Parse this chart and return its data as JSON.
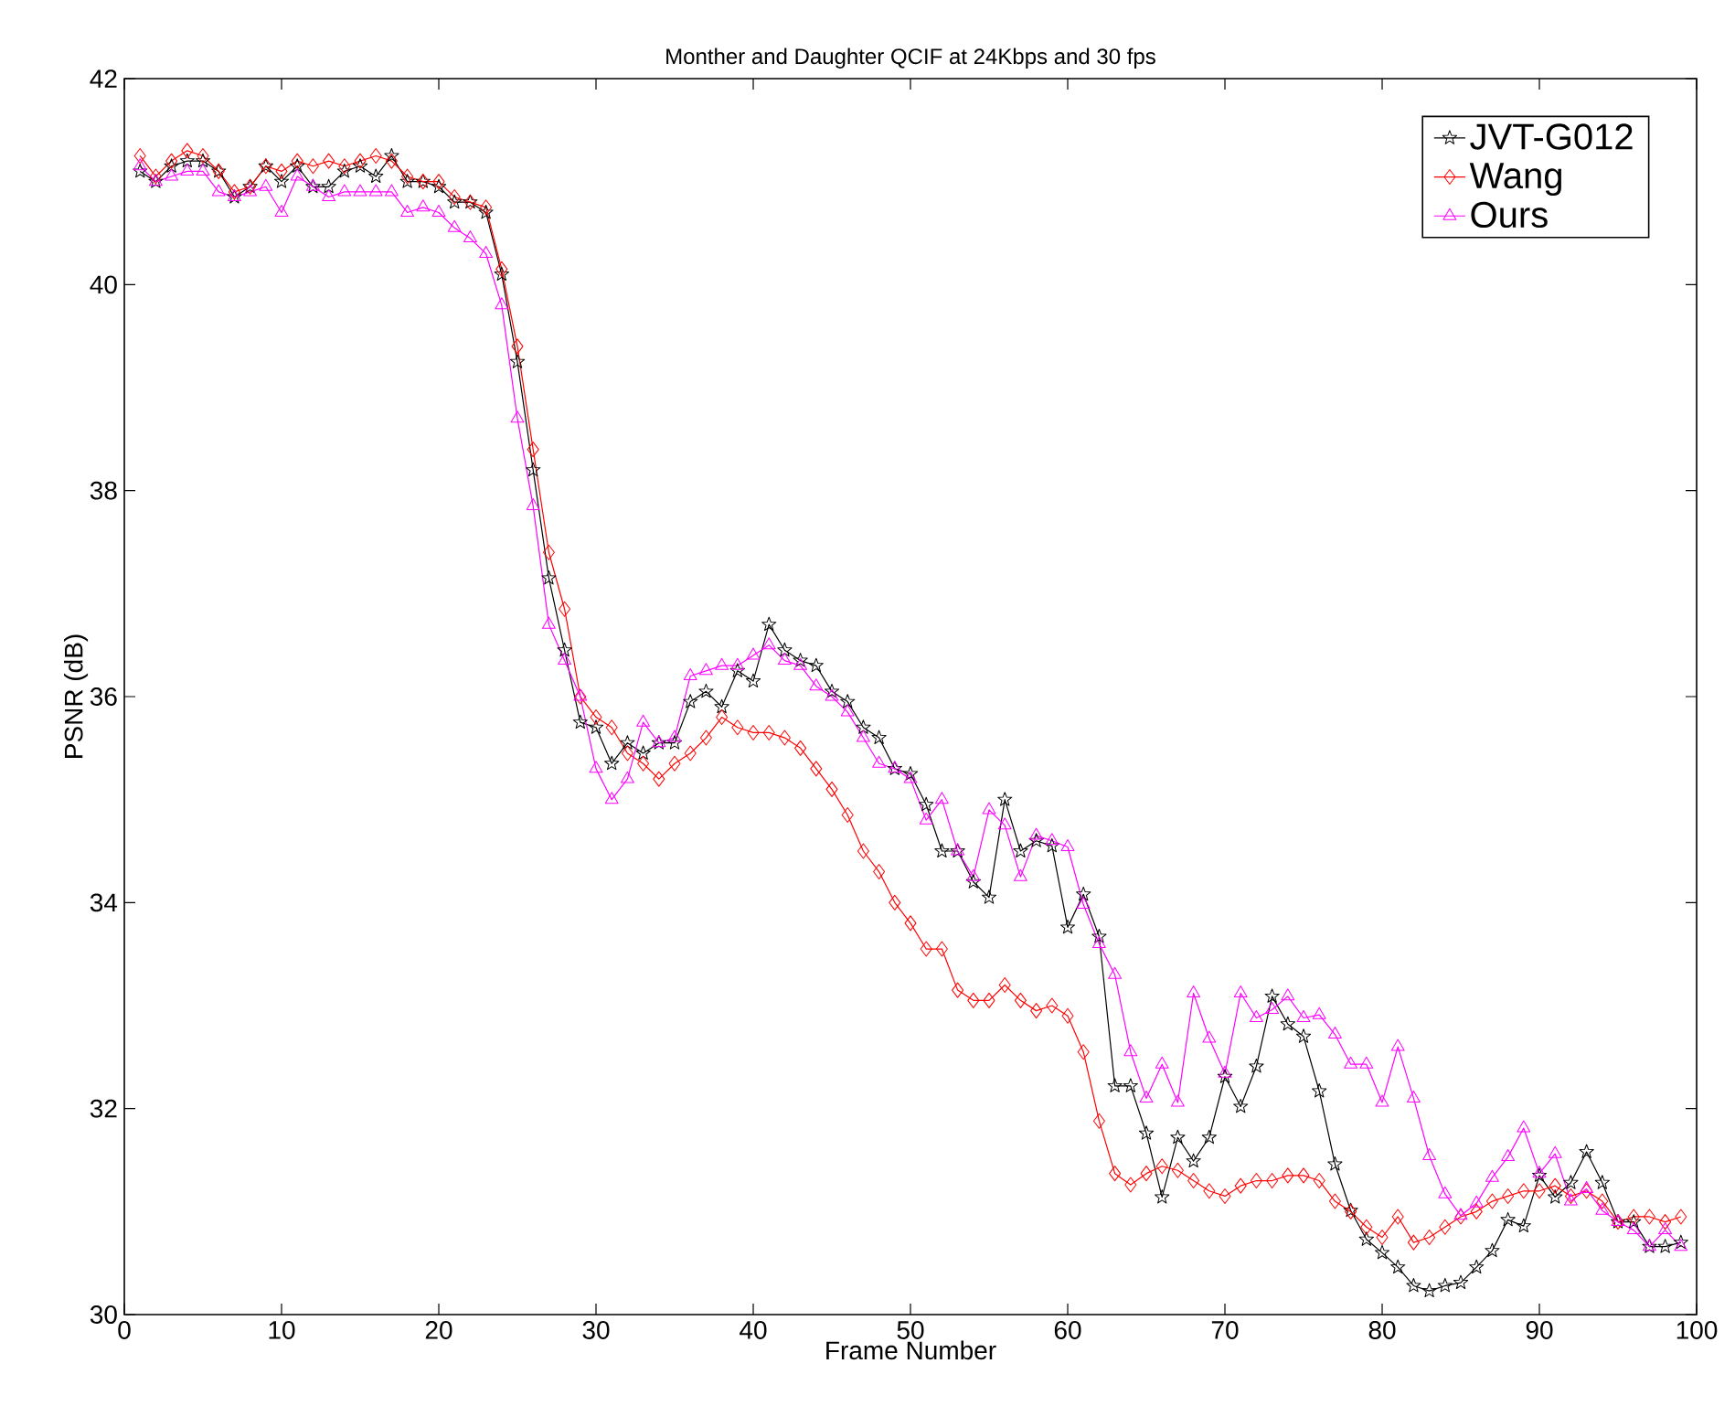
{
  "chart_data": {
    "type": "line",
    "title": "Monther and Daughter QCIF at 24Kbps and 30 fps",
    "xlabel": "Frame Number",
    "ylabel": "PSNR (dB)",
    "xlim": [
      0,
      100
    ],
    "ylim": [
      30,
      42
    ],
    "xticks": [
      0,
      10,
      20,
      30,
      40,
      50,
      60,
      70,
      80,
      90,
      100
    ],
    "yticks": [
      30,
      32,
      34,
      36,
      38,
      40,
      42
    ],
    "grid": false,
    "legend": "top right",
    "line_style": "solid",
    "x": [
      1,
      2,
      3,
      4,
      5,
      6,
      7,
      8,
      9,
      10,
      11,
      12,
      13,
      14,
      15,
      16,
      17,
      18,
      19,
      20,
      21,
      22,
      23,
      24,
      25,
      26,
      27,
      28,
      29,
      30,
      31,
      32,
      33,
      34,
      35,
      36,
      37,
      38,
      39,
      40,
      41,
      42,
      43,
      44,
      45,
      46,
      47,
      48,
      49,
      50,
      51,
      52,
      53,
      54,
      55,
      56,
      57,
      58,
      59,
      60,
      61,
      62,
      63,
      64,
      65,
      66,
      67,
      68,
      69,
      70,
      71,
      72,
      73,
      74,
      75,
      76,
      77,
      78,
      79,
      80,
      81,
      82,
      83,
      84,
      85,
      86,
      87,
      88,
      89,
      90,
      91,
      92,
      93,
      94,
      95,
      96,
      97,
      98,
      99
    ],
    "series": [
      {
        "name": "JVT-G012",
        "color": "#000000",
        "marker": "star",
        "values": [
          41.1,
          41.0,
          41.15,
          41.2,
          41.2,
          41.1,
          40.85,
          40.95,
          41.15,
          41.0,
          41.15,
          40.95,
          40.95,
          41.1,
          41.15,
          41.05,
          41.25,
          41.0,
          41.0,
          40.95,
          40.8,
          40.8,
          40.7,
          40.1,
          39.25,
          38.2,
          37.15,
          36.45,
          35.75,
          35.7,
          35.35,
          35.55,
          35.45,
          35.55,
          35.55,
          35.95,
          36.05,
          35.9,
          36.25,
          36.15,
          36.7,
          36.45,
          36.35,
          36.3,
          36.05,
          35.95,
          35.7,
          35.6,
          35.3,
          35.25,
          34.95,
          34.5,
          34.5,
          34.2,
          34.05,
          35.0,
          34.5,
          34.6,
          34.55,
          33.76,
          34.08,
          33.67,
          32.22,
          32.22,
          31.76,
          31.14,
          31.72,
          31.49,
          31.72,
          32.31,
          32.02,
          32.41,
          33.09,
          32.82,
          32.7,
          32.17,
          31.46,
          31.01,
          30.73,
          30.6,
          30.46,
          30.28,
          30.23,
          30.28,
          30.31,
          30.46,
          30.62,
          30.92,
          30.86,
          31.35,
          31.14,
          31.28,
          31.58,
          31.28,
          30.9,
          30.9,
          30.66,
          30.66,
          30.7
        ]
      },
      {
        "name": "Wang",
        "color": "#ff0000",
        "marker": "diamond",
        "values": [
          41.25,
          41.05,
          41.2,
          41.3,
          41.25,
          41.1,
          40.9,
          40.95,
          41.15,
          41.1,
          41.2,
          41.15,
          41.2,
          41.15,
          41.2,
          41.25,
          41.2,
          41.05,
          41.0,
          41.0,
          40.85,
          40.8,
          40.75,
          40.15,
          39.4,
          38.4,
          37.4,
          36.85,
          36.0,
          35.8,
          35.7,
          35.45,
          35.35,
          35.2,
          35.35,
          35.45,
          35.6,
          35.8,
          35.7,
          35.65,
          35.65,
          35.6,
          35.5,
          35.3,
          35.1,
          34.85,
          34.5,
          34.3,
          34.0,
          33.8,
          33.55,
          33.55,
          33.15,
          33.05,
          33.05,
          33.2,
          33.05,
          32.95,
          33.0,
          32.9,
          32.55,
          31.88,
          31.37,
          31.26,
          31.37,
          31.44,
          31.4,
          31.3,
          31.2,
          31.15,
          31.25,
          31.3,
          31.3,
          31.35,
          31.35,
          31.3,
          31.1,
          31.0,
          30.85,
          30.75,
          30.95,
          30.7,
          30.75,
          30.85,
          30.95,
          31.0,
          31.1,
          31.15,
          31.2,
          31.2,
          31.25,
          31.15,
          31.2,
          31.1,
          30.9,
          30.95,
          30.95,
          30.9,
          30.95
        ]
      },
      {
        "name": "Ours",
        "color": "#ff00ff",
        "marker": "triangle",
        "values": [
          41.15,
          41.0,
          41.05,
          41.1,
          41.1,
          40.9,
          40.85,
          40.9,
          40.95,
          40.7,
          41.05,
          40.95,
          40.85,
          40.9,
          40.9,
          40.9,
          40.9,
          40.7,
          40.75,
          40.7,
          40.55,
          40.45,
          40.3,
          39.8,
          38.7,
          37.85,
          36.7,
          36.35,
          36.0,
          35.3,
          35.0,
          35.2,
          35.75,
          35.55,
          35.6,
          36.2,
          36.25,
          36.3,
          36.3,
          36.4,
          36.5,
          36.35,
          36.3,
          36.1,
          36.0,
          35.85,
          35.6,
          35.35,
          35.3,
          35.2,
          34.8,
          35.0,
          34.5,
          34.25,
          34.9,
          34.75,
          34.25,
          34.65,
          34.6,
          34.54,
          33.98,
          33.6,
          33.3,
          32.55,
          32.1,
          32.43,
          32.06,
          33.12,
          32.68,
          32.34,
          33.12,
          32.88,
          32.96,
          33.09,
          32.88,
          32.91,
          32.72,
          32.43,
          32.43,
          32.06,
          32.6,
          32.1,
          31.54,
          31.17,
          30.96,
          31.08,
          31.33,
          31.53,
          31.81,
          31.37,
          31.56,
          31.1,
          31.22,
          31.01,
          30.9,
          30.82,
          30.66,
          30.82,
          30.66
        ]
      }
    ]
  }
}
